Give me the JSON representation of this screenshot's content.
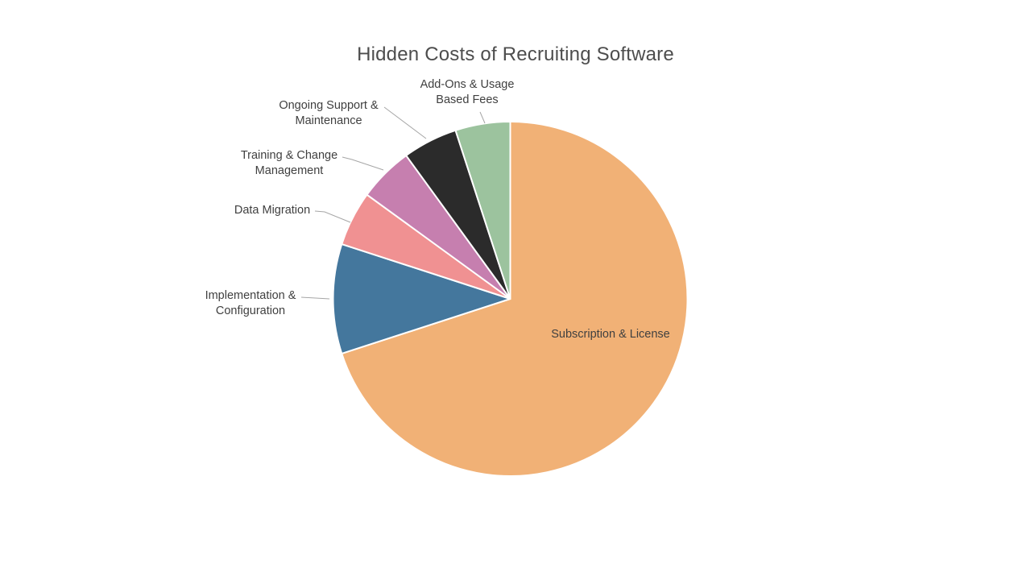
{
  "page": {
    "background_color": "#FFFFFF"
  },
  "chart_data": {
    "type": "pie",
    "title": "Hidden Costs of Recruiting Software",
    "legend": "none",
    "start_angle_deg": 0,
    "direction": "clockwise",
    "values_unit": "percent",
    "note": "No numeric data labels shown; percentages estimated from slice angles",
    "title_color": "#4D4D4D",
    "label_color": "#404040",
    "slice_border_color": "#FFFFFF",
    "leader_line_color": "#A6A6A6",
    "slices": [
      {
        "label": "Subscription & License",
        "value": 70,
        "color": "#F1B176",
        "label_placement": "inside"
      },
      {
        "label": "Implementation & Configuration",
        "value": 10,
        "color": "#44779D",
        "label_placement": "outside"
      },
      {
        "label": "Data Migration",
        "value": 5,
        "color": "#F09192",
        "label_placement": "outside"
      },
      {
        "label": "Training & Change Management",
        "value": 5,
        "color": "#C67FAF",
        "label_placement": "outside"
      },
      {
        "label": "Ongoing Support & Maintenance",
        "value": 5,
        "color": "#2B2B2B",
        "label_placement": "outside"
      },
      {
        "label": "Add-Ons & Usage Based Fees",
        "value": 5,
        "color": "#9CC39E",
        "label_placement": "outside"
      }
    ]
  }
}
